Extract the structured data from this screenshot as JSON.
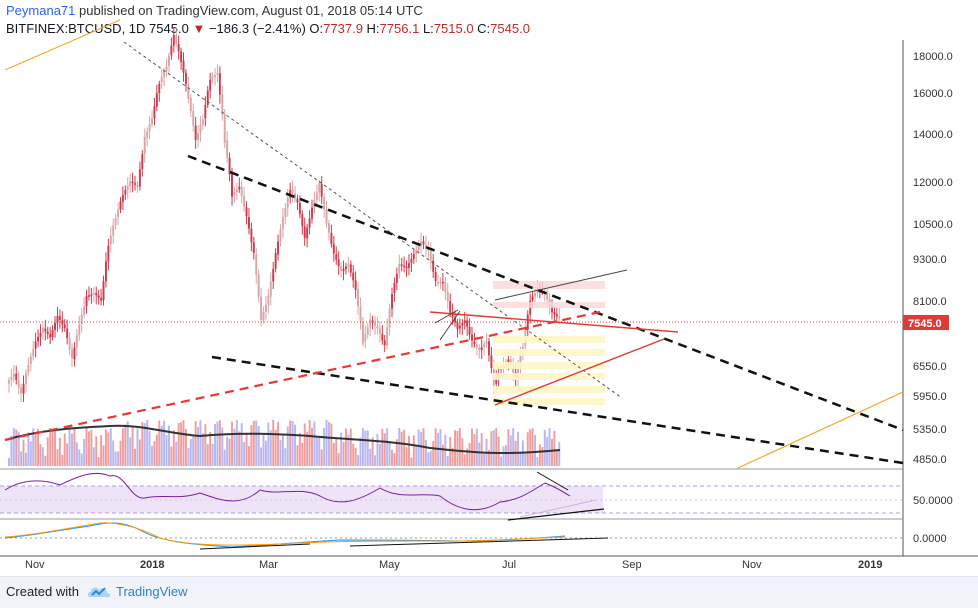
{
  "header": {
    "author": "Peymana71",
    "published_text": "published on TradingView.com, August 01, 2018 05:14 UTC",
    "symbol": "BITFINEX:BTCUSD, 1D",
    "last": "7545.0",
    "change": "−186.3 (−2.41%)",
    "o_label": "O:",
    "o_value": "7737.9",
    "h_label": "H:",
    "h_value": "7756.1",
    "l_label": "L:",
    "l_value": "7515.0",
    "c_label": "C:",
    "c_value": "7545.0"
  },
  "price_axis": {
    "ticks": [
      "18000.0",
      "16000.0",
      "14000.0",
      "12000.0",
      "10500.0",
      "9300.0",
      "8100.0",
      "7545.0",
      "6550.0",
      "5950.0",
      "5350.0",
      "4850.0"
    ],
    "last_price_label": "7545.0"
  },
  "rsi_axis": {
    "ticks": [
      "50.0000"
    ]
  },
  "macd_axis": {
    "ticks": [
      "0.0000"
    ]
  },
  "time_axis": {
    "labels": [
      "Nov",
      "2018",
      "Mar",
      "May",
      "Jul",
      "Sep",
      "Nov",
      "2019"
    ]
  },
  "footer": {
    "created_with": "Created with",
    "brand": "TradingView"
  },
  "colors": {
    "up": "#d7a6a6",
    "down": "#d0394b",
    "volume_up": "#a5a5ee",
    "volume_down": "#ef8585",
    "last_price": "#e53935",
    "rsi": "#7b1fa2",
    "rsi_band": "#e8d4f2",
    "trend_orange": "#f5a623",
    "macd_line": "#2196f3",
    "signal_line": "#ff9800"
  },
  "chart_data": {
    "type": "candlestick",
    "series_note_values": [
      "7737.9",
      "7756.1",
      "7515.0",
      "7545.0"
    ],
    "closes": [
      6100,
      6300,
      5900,
      6500,
      7000,
      7300,
      7100,
      7600,
      7300,
      6600,
      7400,
      8100,
      8200,
      8000,
      9600,
      10500,
      11300,
      11800,
      11600,
      13600,
      14500,
      16300,
      17200,
      19000,
      17500,
      15500,
      13500,
      14500,
      16500,
      16800,
      13500,
      11300,
      11600,
      10500,
      9300,
      7500,
      8100,
      9300,
      10500,
      11500,
      11000,
      9800,
      10800,
      11700,
      10300,
      9300,
      8800,
      9000,
      8300,
      7000,
      7500,
      7300,
      6900,
      8200,
      9000,
      8900,
      9300,
      9700,
      9400,
      8500,
      8500,
      7700,
      7300,
      7500,
      7000,
      6800,
      7000,
      6100,
      6400,
      6600,
      6200,
      6900,
      8000,
      8300,
      8200,
      7700,
      7545
    ],
    "ylim": [
      4600,
      18600
    ]
  }
}
